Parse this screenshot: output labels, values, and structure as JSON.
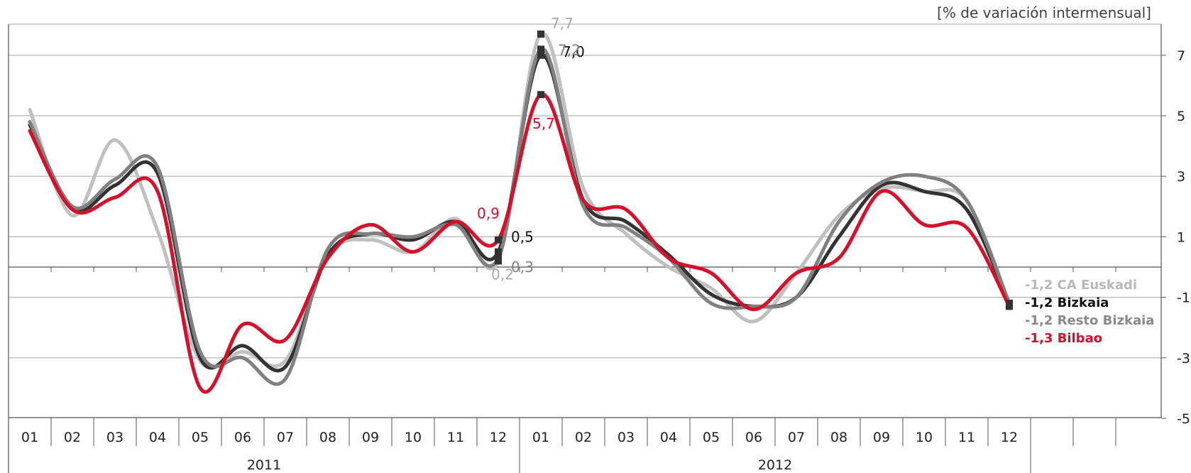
{
  "chart_data": {
    "type": "line",
    "unit_label": "[% de variación intermensual]",
    "ylim": [
      -5,
      8
    ],
    "y_ticks": [
      7,
      5,
      3,
      1,
      -1,
      -3,
      -5
    ],
    "grid": true,
    "categories": [
      "01",
      "02",
      "03",
      "04",
      "05",
      "06",
      "07",
      "08",
      "09",
      "10",
      "11",
      "12",
      "01",
      "02",
      "03",
      "04",
      "05",
      "06",
      "07",
      "08",
      "09",
      "10",
      "11",
      "12"
    ],
    "years": [
      "2011",
      "2012"
    ],
    "series": [
      {
        "name": "CA Euskadi",
        "color": "#c0c0c0",
        "values": [
          5.2,
          1.7,
          4.2,
          1.2,
          -3.1,
          -2.8,
          -3.1,
          0.4,
          0.9,
          0.5,
          1.6,
          0.2,
          7.7,
          2.6,
          1.1,
          0.0,
          -0.7,
          -1.8,
          -0.2,
          1.7,
          2.6,
          2.5,
          2.2,
          -1.2
        ],
        "labels": {
          "11": "0,2",
          "12": "7,7",
          "23": "-1,2"
        }
      },
      {
        "name": "Bizkaia",
        "color": "#333333",
        "values": [
          4.7,
          1.9,
          2.7,
          3.1,
          -3.0,
          -2.6,
          -3.3,
          0.4,
          1.1,
          0.9,
          1.5,
          0.5,
          7.0,
          2.2,
          1.5,
          0.4,
          -0.9,
          -1.3,
          -1.0,
          1.0,
          2.7,
          2.5,
          1.9,
          -1.2
        ],
        "labels": {
          "11": "0,5",
          "12": "7,0",
          "23": "-1,2"
        }
      },
      {
        "name": "Resto Bizkaia",
        "color": "#808080",
        "values": [
          4.8,
          2.0,
          2.9,
          3.3,
          -2.8,
          -3.0,
          -3.7,
          0.6,
          1.1,
          1.0,
          1.4,
          0.3,
          7.2,
          2.0,
          1.3,
          0.3,
          -1.2,
          -1.3,
          -1.0,
          1.5,
          2.8,
          3.0,
          2.2,
          -1.2
        ],
        "labels": {
          "11": "0,3",
          "12": "7,2",
          "23": "-1,2"
        }
      },
      {
        "name": "Bilbao",
        "color": "#d80f2a",
        "values": [
          4.5,
          1.9,
          2.3,
          2.5,
          -4.0,
          -1.9,
          -2.4,
          0.3,
          1.4,
          0.5,
          1.5,
          0.9,
          5.7,
          2.2,
          1.9,
          0.3,
          -0.2,
          -1.4,
          -0.2,
          0.3,
          2.5,
          1.4,
          1.3,
          -1.3
        ],
        "labels": {
          "11": "0,9",
          "12": "5,7",
          "23": "-1,3"
        }
      }
    ]
  }
}
